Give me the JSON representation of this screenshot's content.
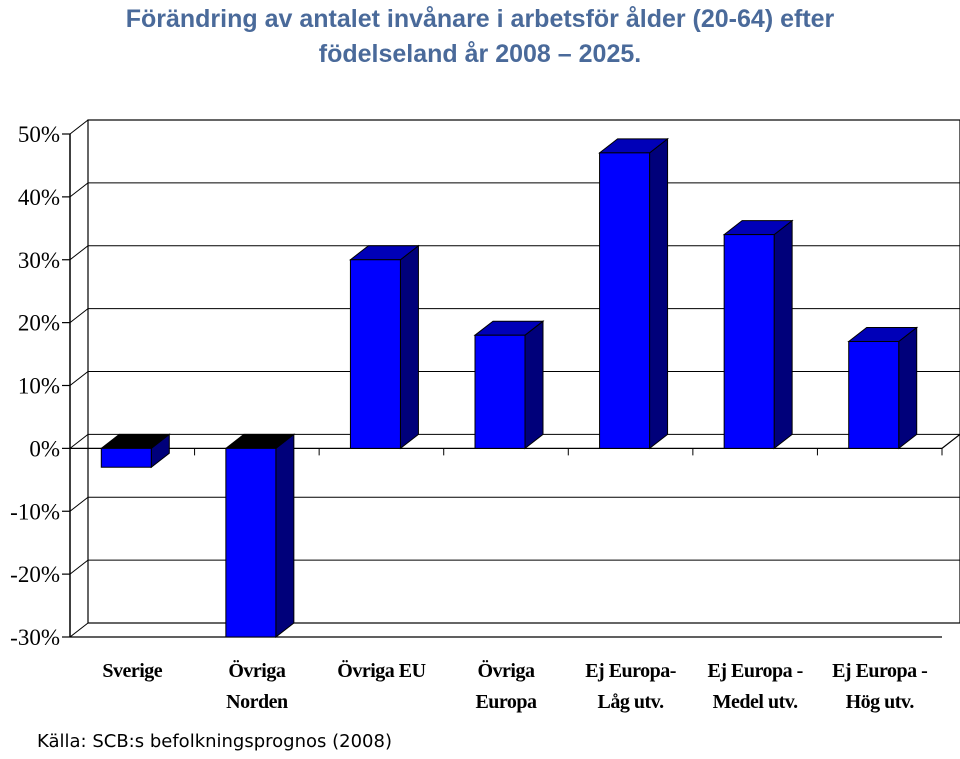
{
  "title_line1": "Förändring av antalet invånare i arbetsför ålder (20-64) efter",
  "title_line2": "födelseland år 2008 – 2025.",
  "source": "Källa: SCB:s befolkningsprognos (2008)",
  "colors": {
    "bar_front": "#0000ff",
    "bar_side": "#00007a",
    "bar_top": "#0000b8",
    "negative_top": "#000000",
    "title": "#4a6a9a"
  },
  "chart_data": {
    "type": "bar",
    "title": "Förändring av antalet invånare i arbetsför ålder (20-64) efter födelseland år 2008 – 2025.",
    "categories": [
      [
        "Sverige"
      ],
      [
        "Övriga",
        "Norden"
      ],
      [
        "Övriga EU"
      ],
      [
        "Övriga",
        "Europa"
      ],
      [
        "Ej Europa-",
        "Låg utv."
      ],
      [
        "Ej Europa -",
        "Medel utv."
      ],
      [
        "Ej Europa -",
        "Hög utv."
      ]
    ],
    "values": [
      -3,
      -30,
      30,
      18,
      47,
      34,
      17
    ],
    "ylim": [
      -30,
      50
    ],
    "yticks": [
      "50%",
      "40%",
      "30%",
      "20%",
      "10%",
      "0%",
      "-10%",
      "-20%",
      "-30%"
    ],
    "ytick_values": [
      50,
      40,
      30,
      20,
      10,
      0,
      -10,
      -20,
      -30
    ],
    "grid": true,
    "style": "3d-bar"
  }
}
